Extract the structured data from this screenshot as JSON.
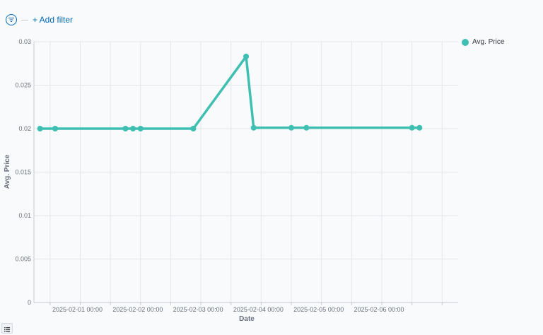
{
  "toolbar": {
    "add_filter_label": "+ Add filter",
    "filter_icon": "filter-icon",
    "legend_toggle_icon": "list-icon"
  },
  "colors": {
    "series": "#3fbfb2",
    "grid": "#e3e6eb",
    "axis": "#c5c9d1",
    "link": "#006bb8"
  },
  "chart_data": {
    "type": "line",
    "xlabel": "Date",
    "ylabel": "Avg. Price",
    "ylim": [
      0,
      0.03
    ],
    "y_ticks": [
      "0",
      "0.005",
      "0.01",
      "0.015",
      "0.02",
      "0.025",
      "0.03"
    ],
    "x_ticks": [
      "2025-02-01 00:00",
      "2025-02-02 00:00",
      "2025-02-03 00:00",
      "2025-02-04 00:00",
      "2025-02-05 00:00",
      "2025-02-06 00:00"
    ],
    "grid": true,
    "legend_position": "top-right",
    "series": [
      {
        "name": "Avg. Price",
        "points": [
          {
            "x": "2025-01-31 08:00",
            "y": 0.02
          },
          {
            "x": "2025-01-31 14:00",
            "y": 0.02
          },
          {
            "x": "2025-02-01 18:00",
            "y": 0.02
          },
          {
            "x": "2025-02-01 21:00",
            "y": 0.02
          },
          {
            "x": "2025-02-02 00:00",
            "y": 0.02
          },
          {
            "x": "2025-02-02 21:00",
            "y": 0.02
          },
          {
            "x": "2025-02-03 18:00",
            "y": 0.0283
          },
          {
            "x": "2025-02-03 21:00",
            "y": 0.0201
          },
          {
            "x": "2025-02-04 12:00",
            "y": 0.0201
          },
          {
            "x": "2025-02-04 18:00",
            "y": 0.0201
          },
          {
            "x": "2025-02-06 12:00",
            "y": 0.0201
          },
          {
            "x": "2025-02-06 15:00",
            "y": 0.0201
          }
        ]
      }
    ]
  }
}
